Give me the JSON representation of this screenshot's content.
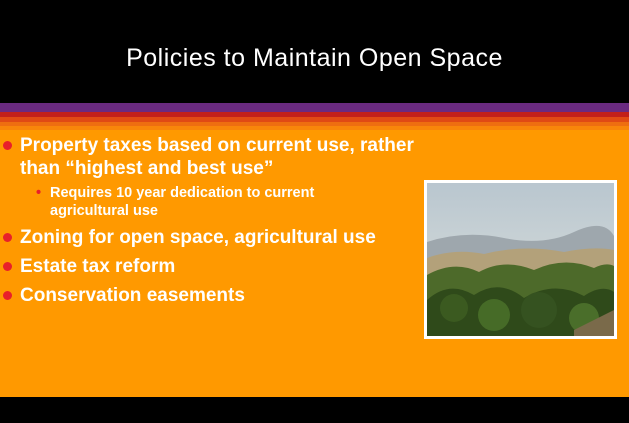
{
  "title": "Policies to Maintain Open Space",
  "bullets": [
    {
      "text": "Property taxes based on current use, rather than “highest and best use”",
      "subitems": [
        "Requires 10 year dedication to current agricultural use"
      ]
    },
    {
      "text": "Zoning for open space, agricultural use",
      "subitems": []
    },
    {
      "text": "Estate tax reform",
      "subitems": []
    },
    {
      "text": "Conservation easements",
      "subitems": []
    }
  ]
}
